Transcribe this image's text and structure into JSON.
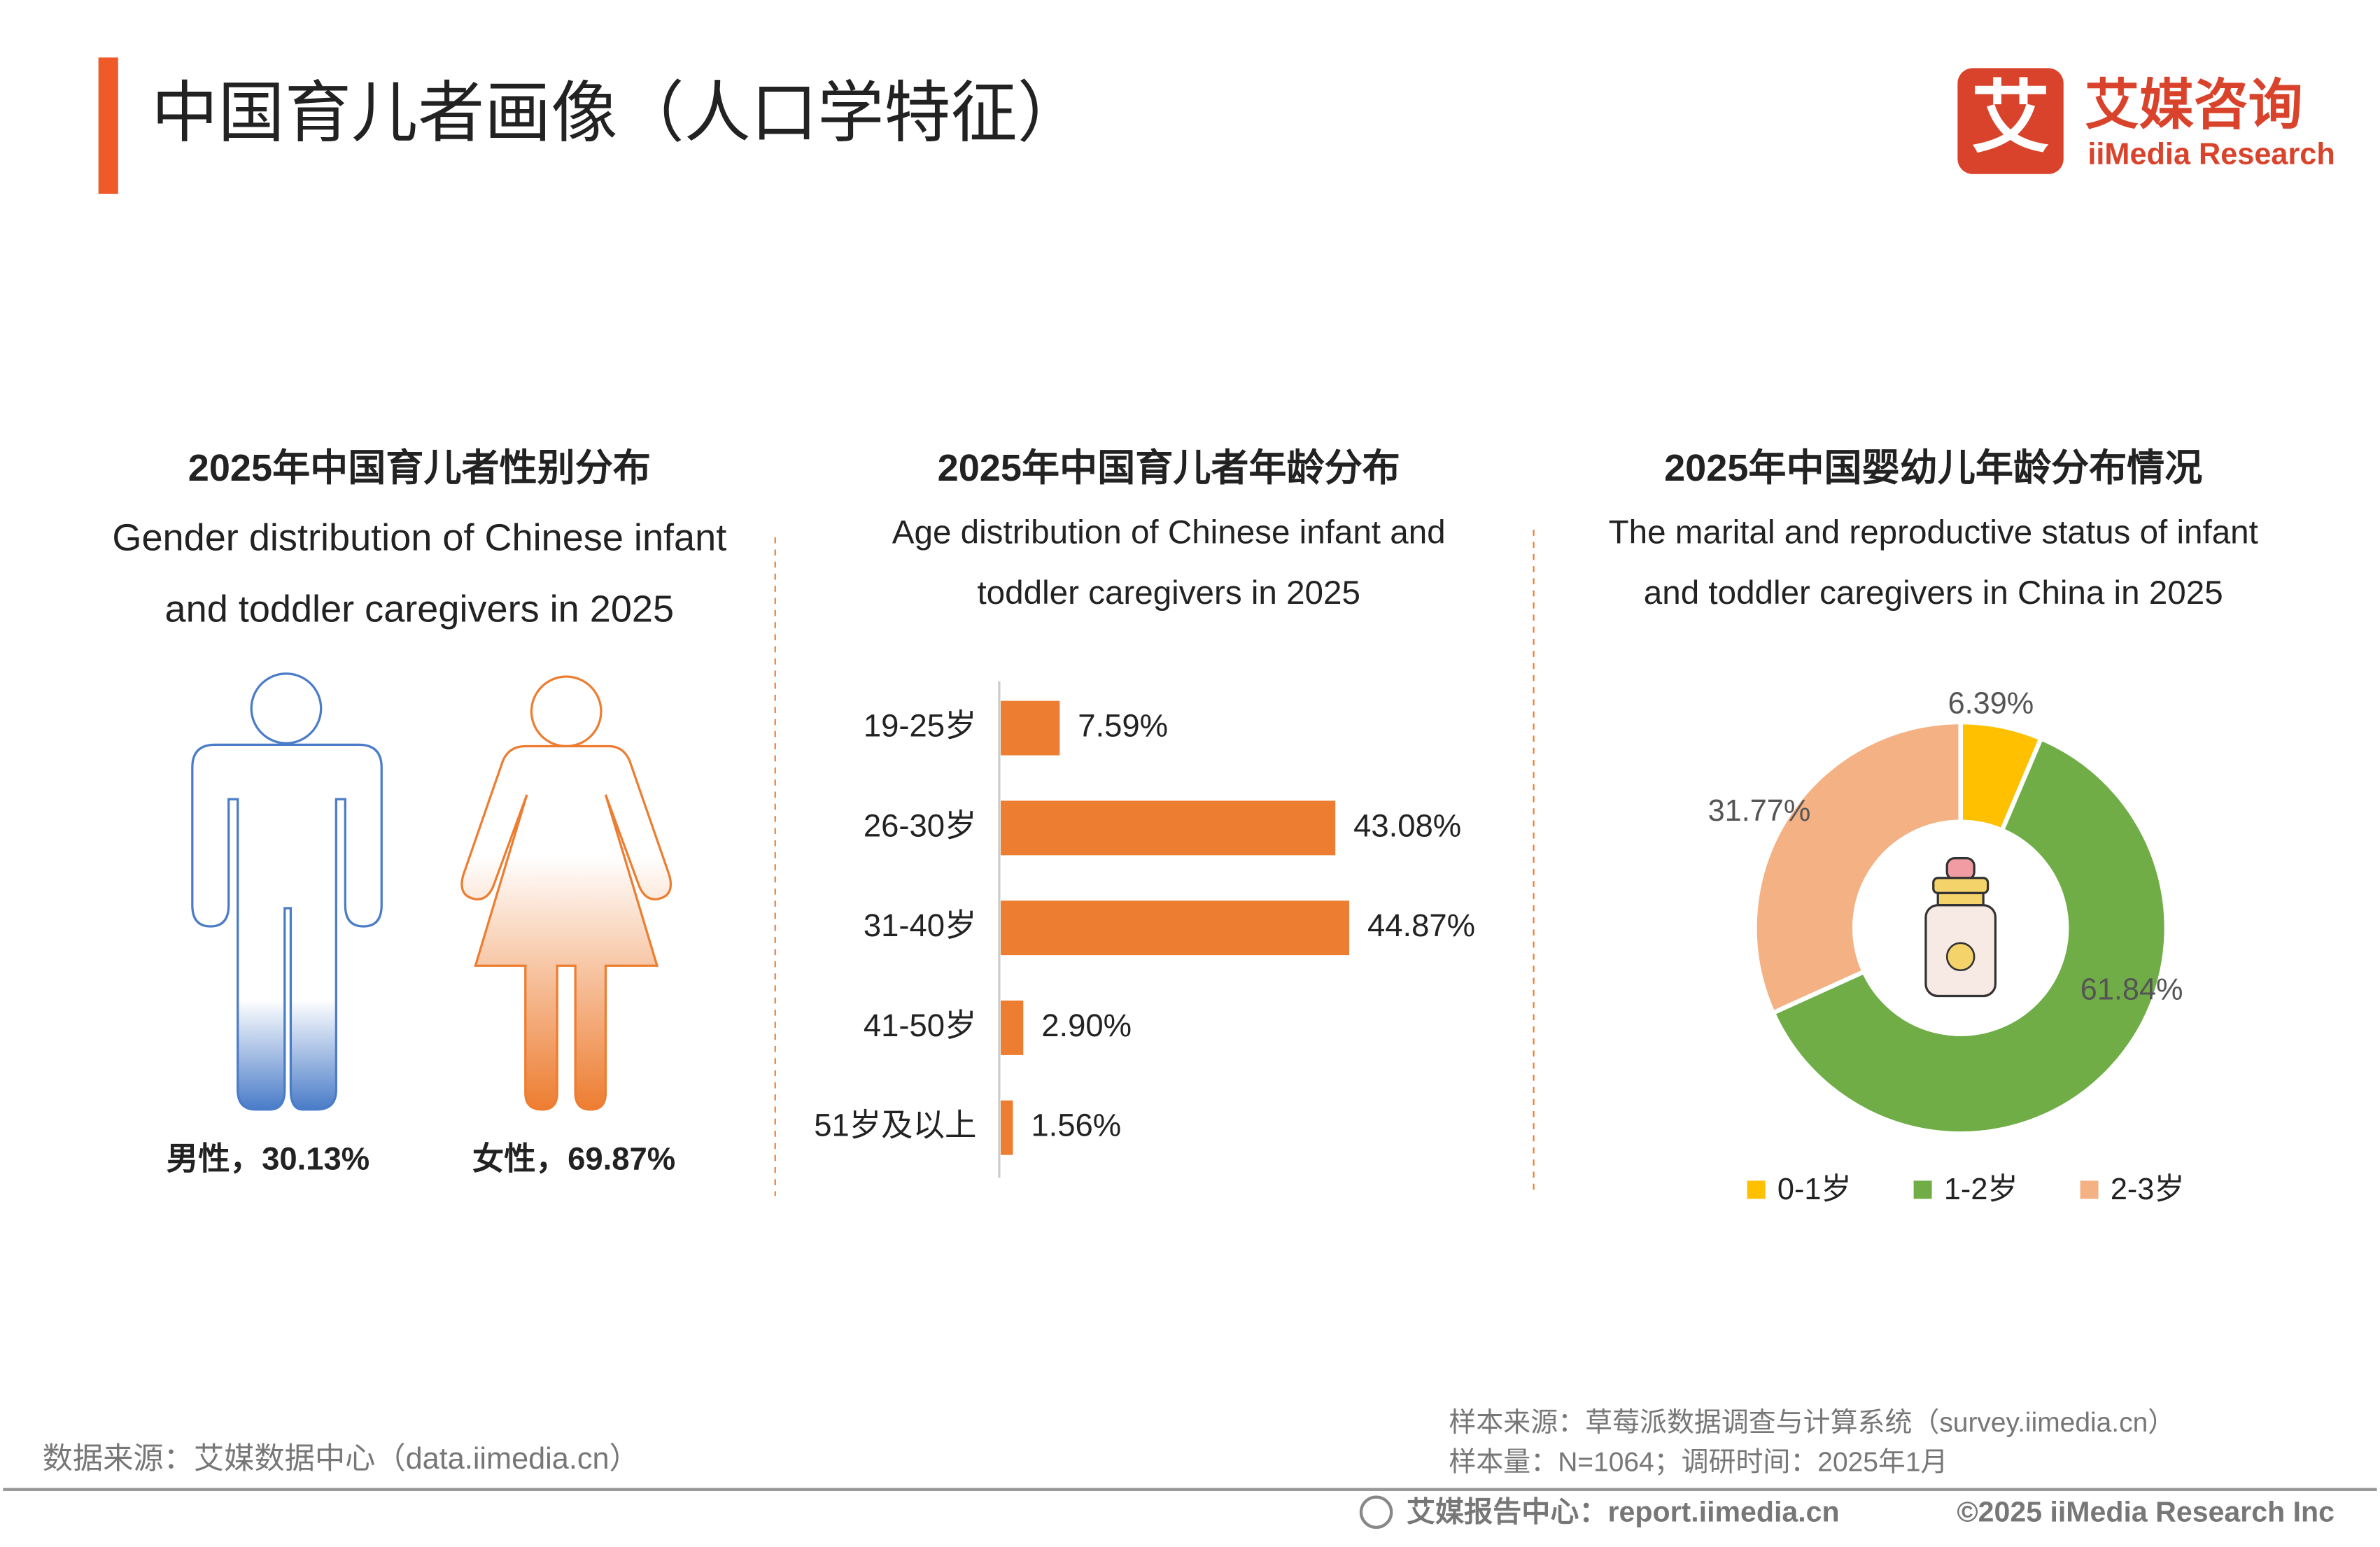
{
  "header": {
    "title": "中国育儿者画像（人口学特征）",
    "logo_mark": "艾",
    "logo_cn": "艾媒咨询",
    "logo_en": "iiMedia Research"
  },
  "chart_data": [
    {
      "type": "pictogram",
      "title": "2025年中国育儿者性别分布",
      "subtitle": [
        "Gender distribution of Chinese infant",
        "and toddler caregivers in 2025"
      ],
      "categories": [
        "男性",
        "女性"
      ],
      "values": [
        30.13,
        69.87
      ],
      "value_labels": [
        "男性，30.13%",
        "女性，69.87%"
      ],
      "colors": [
        "#4a7cc8",
        "#ed7d31"
      ]
    },
    {
      "type": "bar",
      "title": "2025年中国育儿者年龄分布",
      "subtitle": [
        "Age distribution of Chinese infant and",
        "toddler caregivers in 2025"
      ],
      "categories": [
        "19-25岁",
        "26-30岁",
        "31-40岁",
        "41-50岁",
        "51岁及以上"
      ],
      "values": [
        7.59,
        43.08,
        44.87,
        2.9,
        1.56
      ],
      "value_labels": [
        "7.59%",
        "43.08%",
        "44.87%",
        "2.90%",
        "1.56%"
      ],
      "color": "#ed7d31"
    },
    {
      "type": "donut",
      "title": "2025年中国婴幼儿年龄分布情况",
      "subtitle": [
        "The marital and reproductive status of infant",
        "and toddler caregivers in China in 2025"
      ],
      "categories": [
        "0-1岁",
        "1-2岁",
        "2-3岁"
      ],
      "values": [
        6.39,
        61.84,
        31.77
      ],
      "value_labels": [
        "6.39%",
        "61.84%",
        "31.77%"
      ],
      "colors": [
        "#ffc000",
        "#70ad47",
        "#f4b183"
      ]
    }
  ],
  "footer": {
    "source": "数据来源：艾媒数据中心（data.iimedia.cn）",
    "sample_source": "样本来源：草莓派数据调查与计算系统（survey.iimedia.cn）",
    "sample_size": "样本量：N=1064；调研时间：2025年1月",
    "report_center": "艾媒报告中心：report.iimedia.cn",
    "copyright": "©2025  iiMedia Research  Inc"
  }
}
